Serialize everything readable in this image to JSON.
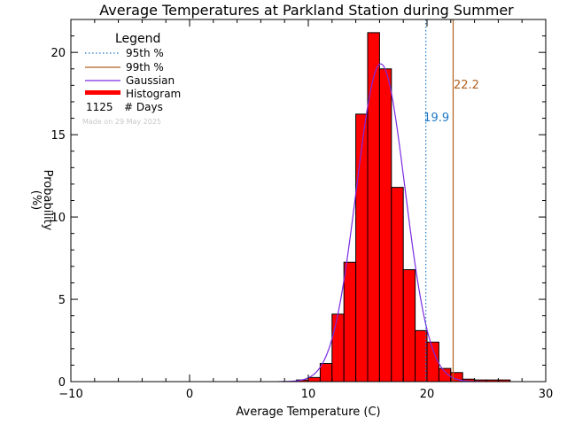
{
  "chart_data": {
    "type": "bar",
    "title": "Average Temperatures at Parkland Station during Summer",
    "xlabel": "Average Temperature (C)",
    "ylabel_line1": "Probability",
    "ylabel_line2": "(%)",
    "xlim": [
      -10,
      30
    ],
    "ylim": [
      0,
      22
    ],
    "xticks": [
      -10,
      0,
      10,
      20,
      30
    ],
    "yticks": [
      0,
      5,
      10,
      15,
      20
    ],
    "bin_width": 1,
    "bins": [
      {
        "start": 9,
        "value": 0.1
      },
      {
        "start": 10,
        "value": 0.25
      },
      {
        "start": 11,
        "value": 1.1
      },
      {
        "start": 12,
        "value": 4.1
      },
      {
        "start": 13,
        "value": 7.25
      },
      {
        "start": 14,
        "value": 16.25
      },
      {
        "start": 15,
        "value": 21.2
      },
      {
        "start": 16,
        "value": 19.0
      },
      {
        "start": 17,
        "value": 11.8
      },
      {
        "start": 18,
        "value": 6.8
      },
      {
        "start": 19,
        "value": 3.1
      },
      {
        "start": 20,
        "value": 2.4
      },
      {
        "start": 21,
        "value": 0.8
      },
      {
        "start": 22,
        "value": 0.55
      },
      {
        "start": 23,
        "value": 0.15
      },
      {
        "start": 24,
        "value": 0.1
      },
      {
        "start": 25,
        "value": 0.1
      },
      {
        "start": 26,
        "value": 0.1
      }
    ],
    "gaussian": {
      "mean": 16.1,
      "sd": 2.05,
      "peak": 19.3
    },
    "percentile_95": {
      "value": 19.9,
      "label": "19.9",
      "color": "#1f78c8"
    },
    "percentile_99": {
      "value": 22.2,
      "label": "22.2",
      "color": "#b0601e"
    },
    "legend": {
      "title": "Legend",
      "placement": "top-left",
      "items": [
        {
          "label": "95th %",
          "style": "dotted",
          "color": "#1f78c8"
        },
        {
          "label": "99th %",
          "style": "solid",
          "color": "#b0601e"
        },
        {
          "label": "Gaussian",
          "style": "solid",
          "color": "#7a2be2"
        },
        {
          "label": "Histogram",
          "style": "thick",
          "color": "#ff0000"
        }
      ],
      "days_count": "1125",
      "days_label": "# Days",
      "made_on": "Made on 29 May 2025"
    },
    "colors": {
      "histogram": "#ff0000",
      "gaussian": "#7a2be2"
    }
  }
}
